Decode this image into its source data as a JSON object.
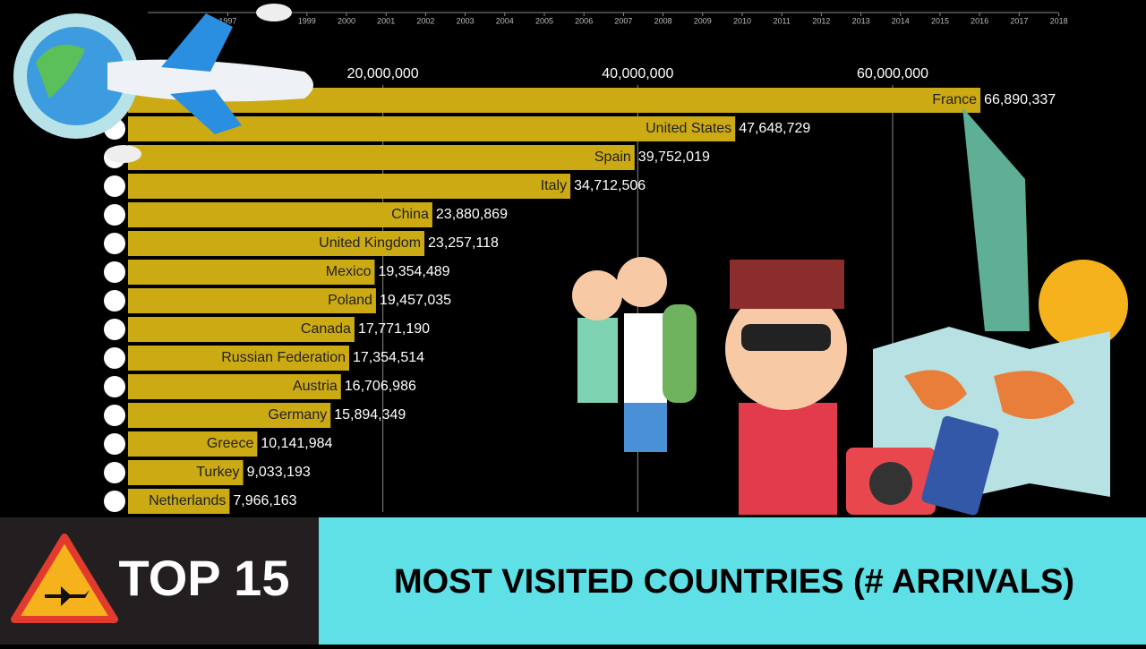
{
  "chart_data": {
    "type": "bar",
    "orientation": "horizontal",
    "categories": [
      "France",
      "United States",
      "Spain",
      "Italy",
      "China",
      "United Kingdom",
      "Mexico",
      "Poland",
      "Canada",
      "Russian Federation",
      "Austria",
      "Germany",
      "Greece",
      "Turkey",
      "Netherlands"
    ],
    "values": [
      66890337,
      47648729,
      39752019,
      34712506,
      23880869,
      23257118,
      19354489,
      19457035,
      17771190,
      17354514,
      16706986,
      15894349,
      10141984,
      9033193,
      7966163
    ],
    "value_labels": [
      "66,890,337",
      "47,648,729",
      "39,752,019",
      "34,712,506",
      "23,880,869",
      "23,257,118",
      "19,354,489",
      "19,457,035",
      "17,771,190",
      "17,354,514",
      "16,706,986",
      "15,894,349",
      "10,141,984",
      "9,033,193",
      "7,966,163"
    ],
    "color": "#ccaa14",
    "xlim": [
      0,
      80000000
    ],
    "xticks": [
      {
        "value": 20000000,
        "label": "20,000,000"
      },
      {
        "value": 40000000,
        "label": "40,000,000"
      },
      {
        "value": 60000000,
        "label": "60,000,000"
      }
    ],
    "grid": true
  },
  "timeline": [
    "1997",
    "1999",
    "2000",
    "2001",
    "2002",
    "2003",
    "2004",
    "2005",
    "2006",
    "2007",
    "2008",
    "2009",
    "2010",
    "2011",
    "2012",
    "2013",
    "2014",
    "2015",
    "2016",
    "2017",
    "2018"
  ],
  "banner": {
    "badge": "TOP 15",
    "title": "MOST VISITED COUNTRIES  (# ARRIVALS)"
  }
}
